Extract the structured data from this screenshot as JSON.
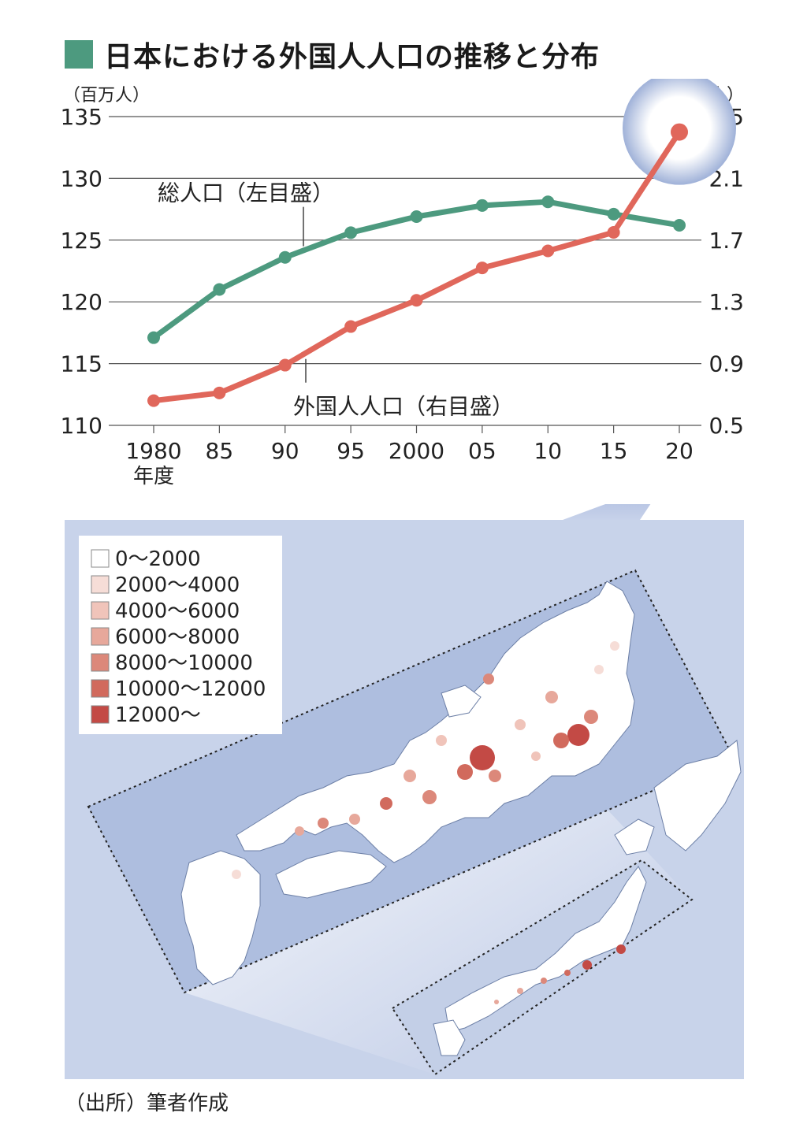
{
  "title": "日本における外国人人口の推移と分布",
  "source_note": "（出所）筆者作成",
  "colors": {
    "accent_green": "#4d9a7f",
    "accent_red": "#e0675b",
    "map_bg": "#c3cfe7",
    "map_bg_light": "#dfe6f3"
  },
  "chart_data": {
    "type": "line",
    "left_axis_unit": "（百万人）",
    "right_axis_unit": "（百万人）",
    "xlabel": "年度",
    "x": [
      "1980",
      "85",
      "90",
      "95",
      "2000",
      "05",
      "10",
      "15",
      "20"
    ],
    "left_ylim": [
      110,
      135
    ],
    "left_ticks": [
      "110",
      "115",
      "120",
      "125",
      "130",
      "135"
    ],
    "right_ylim": [
      0.5,
      2.5
    ],
    "right_ticks": [
      "0.5",
      "0.9",
      "1.3",
      "1.7",
      "2.1",
      "2.5"
    ],
    "grid": true,
    "series": [
      {
        "name": "総人口（左目盛）",
        "axis": "left",
        "color": "#4d9a7f",
        "values": [
          117.1,
          121.0,
          123.6,
          125.6,
          126.9,
          127.8,
          128.1,
          127.1,
          126.2
        ]
      },
      {
        "name": "外国人人口（右目盛）",
        "axis": "right",
        "color": "#e0675b",
        "values": [
          0.66,
          0.71,
          0.89,
          1.14,
          1.31,
          1.52,
          1.63,
          1.75,
          2.4
        ]
      }
    ]
  },
  "map": {
    "legend": [
      {
        "label": "0〜2000",
        "color": "#ffffff"
      },
      {
        "label": "2000〜4000",
        "color": "#f6ddd7"
      },
      {
        "label": "4000〜6000",
        "color": "#f0c4ba"
      },
      {
        "label": "6000〜8000",
        "color": "#e7a89b"
      },
      {
        "label": "8000〜10000",
        "color": "#dc887a"
      },
      {
        "label": "10000〜12000",
        "color": "#d16a5d"
      },
      {
        "label": "12000〜",
        "color": "#c34a45"
      }
    ]
  }
}
